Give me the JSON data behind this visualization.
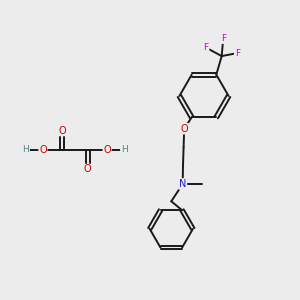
{
  "background_color": "#ececec",
  "bond_color": "#1a1a1a",
  "atom_colors": {
    "O": "#cc0000",
    "N": "#1a1acc",
    "F": "#cc00cc",
    "C": "#1a1a1a",
    "H": "#4a8888"
  },
  "figsize": [
    3.0,
    3.0
  ],
  "dpi": 100
}
